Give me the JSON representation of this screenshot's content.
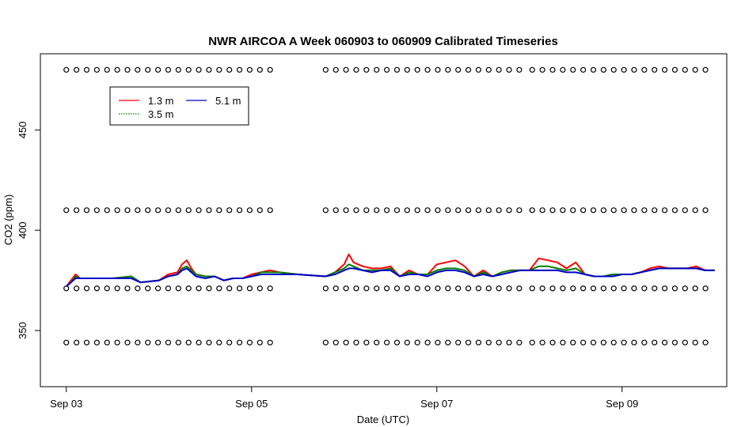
{
  "chart_data": {
    "type": "line",
    "title": "NWR AIRCOA A  Week 060903 to 060909  Calibrated Timeseries",
    "xlabel": "Date (UTC)",
    "ylabel": "CO2 (ppm)",
    "x_ticks": [
      "Sep 03",
      "Sep 05",
      "Sep 07",
      "Sep 09"
    ],
    "x_tick_days": [
      0,
      2,
      4,
      6
    ],
    "xlim": [
      -0.28,
      7.13
    ],
    "y_ticks": [
      350,
      400,
      450
    ],
    "ylim": [
      322,
      488
    ],
    "grid": false,
    "legend": {
      "placement": "top-left",
      "entries": [
        {
          "label": "1.3 m",
          "color": "#ff0000",
          "style": "solid"
        },
        {
          "label": "3.5 m",
          "color": "#008000",
          "style": "dotted"
        },
        {
          "label": "5.1 m",
          "color": "#0000cc",
          "style": "solid"
        }
      ]
    },
    "series": [
      {
        "name": "1.3 m",
        "color": "#ff0000",
        "x": [
          0.0,
          0.05,
          0.1,
          0.15,
          0.3,
          0.5,
          0.7,
          0.8,
          1.0,
          1.1,
          1.2,
          1.25,
          1.3,
          1.35,
          1.4,
          1.5,
          1.6,
          1.7,
          1.8,
          1.9,
          2.0,
          2.1,
          2.2,
          2.3,
          2.5,
          2.8,
          2.9,
          3.0,
          3.05,
          3.1,
          3.2,
          3.3,
          3.4,
          3.5,
          3.6,
          3.7,
          3.8,
          3.9,
          4.0,
          4.1,
          4.2,
          4.3,
          4.4,
          4.5,
          4.6,
          4.7,
          4.8,
          4.9,
          5.0,
          5.1,
          5.2,
          5.3,
          5.4,
          5.5,
          5.6,
          5.7,
          5.8,
          5.9,
          6.0,
          6.1,
          6.2,
          6.3,
          6.4,
          6.5,
          6.6,
          6.7,
          6.8,
          6.9,
          7.0
        ],
        "y": [
          372,
          375,
          378,
          376,
          376,
          376,
          377,
          374,
          375,
          378,
          379,
          383,
          385,
          381,
          378,
          377,
          377,
          375,
          376,
          376,
          378,
          379,
          380,
          379,
          378,
          377,
          379,
          383,
          388,
          384,
          382,
          381,
          381,
          382,
          377,
          380,
          378,
          378,
          383,
          384,
          385,
          382,
          377,
          380,
          377,
          379,
          380,
          380,
          380,
          386,
          385,
          384,
          381,
          384,
          378,
          377,
          377,
          378,
          378,
          378,
          379,
          381,
          382,
          381,
          381,
          381,
          382,
          380,
          380
        ]
      },
      {
        "name": "3.5 m",
        "color": "#008000",
        "x": [
          0.0,
          0.05,
          0.1,
          0.15,
          0.3,
          0.5,
          0.7,
          0.8,
          1.0,
          1.1,
          1.2,
          1.25,
          1.3,
          1.35,
          1.4,
          1.5,
          1.6,
          1.7,
          1.8,
          1.9,
          2.0,
          2.1,
          2.2,
          2.3,
          2.5,
          2.8,
          2.9,
          3.0,
          3.05,
          3.1,
          3.2,
          3.3,
          3.4,
          3.5,
          3.6,
          3.7,
          3.8,
          3.9,
          4.0,
          4.1,
          4.2,
          4.3,
          4.4,
          4.5,
          4.6,
          4.7,
          4.8,
          4.9,
          5.0,
          5.1,
          5.2,
          5.3,
          5.4,
          5.5,
          5.6,
          5.7,
          5.8,
          5.9,
          6.0,
          6.1,
          6.2,
          6.3,
          6.4,
          6.5,
          6.6,
          6.7,
          6.8,
          6.9,
          7.0
        ],
        "y": [
          372,
          374,
          377,
          376,
          376,
          376,
          377,
          374,
          375,
          377,
          378,
          381,
          382,
          380,
          378,
          377,
          377,
          375,
          376,
          376,
          377,
          379,
          379,
          379,
          378,
          377,
          379,
          381,
          383,
          382,
          380,
          380,
          380,
          381,
          377,
          379,
          378,
          378,
          380,
          381,
          381,
          380,
          377,
          379,
          377,
          379,
          380,
          380,
          380,
          382,
          382,
          381,
          380,
          381,
          378,
          377,
          377,
          378,
          378,
          378,
          379,
          380,
          381,
          381,
          381,
          381,
          381,
          380,
          380
        ]
      },
      {
        "name": "5.1 m",
        "color": "#0000cc",
        "x": [
          0.0,
          0.05,
          0.1,
          0.15,
          0.3,
          0.5,
          0.7,
          0.8,
          1.0,
          1.1,
          1.2,
          1.25,
          1.3,
          1.35,
          1.4,
          1.5,
          1.6,
          1.7,
          1.8,
          1.9,
          2.0,
          2.1,
          2.2,
          2.3,
          2.5,
          2.8,
          2.9,
          3.0,
          3.05,
          3.1,
          3.2,
          3.3,
          3.4,
          3.5,
          3.6,
          3.7,
          3.8,
          3.9,
          4.0,
          4.1,
          4.2,
          4.3,
          4.4,
          4.5,
          4.6,
          4.7,
          4.8,
          4.9,
          5.0,
          5.1,
          5.2,
          5.3,
          5.4,
          5.5,
          5.6,
          5.7,
          5.8,
          5.9,
          6.0,
          6.1,
          6.2,
          6.3,
          6.4,
          6.5,
          6.6,
          6.7,
          6.8,
          6.9,
          7.0
        ],
        "y": [
          372,
          374,
          376,
          376,
          376,
          376,
          376,
          374,
          375,
          377,
          378,
          380,
          381,
          379,
          377,
          376,
          377,
          375,
          376,
          376,
          377,
          378,
          378,
          378,
          378,
          377,
          378,
          380,
          381,
          381,
          380,
          379,
          380,
          380,
          377,
          378,
          378,
          377,
          379,
          380,
          380,
          379,
          377,
          378,
          377,
          378,
          379,
          380,
          380,
          380,
          380,
          380,
          379,
          379,
          378,
          377,
          377,
          377,
          378,
          378,
          379,
          380,
          381,
          381,
          381,
          381,
          381,
          380,
          380
        ]
      }
    ],
    "marker_rows": {
      "symbol": "o",
      "y_levels": [
        480,
        410,
        371,
        344
      ],
      "segments": [
        [
          0.0,
          2.25
        ],
        [
          2.8,
          4.97
        ],
        [
          5.03,
          7.0
        ]
      ]
    }
  }
}
